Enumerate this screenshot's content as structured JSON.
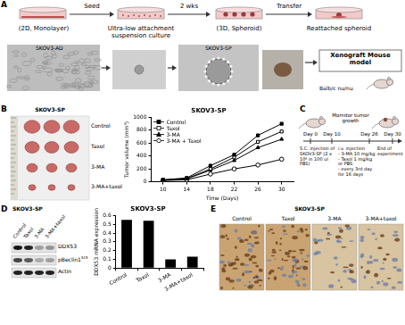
{
  "figure": {
    "A": {
      "letter": "A",
      "steps": [
        "(2D, Monolayer)",
        "Ultra-low attachment suspension culture",
        "(3D, Spheroid)",
        "Reattached spheroid"
      ],
      "arrows": [
        "Seed",
        "2 wks",
        "Transfer"
      ],
      "micrographs": [
        "SKOV3-AD",
        "SKOV3-SP"
      ],
      "model": "Xenograft Mouse model",
      "strain": "Balb/c nu/nu"
    },
    "B": {
      "letter": "B",
      "photo_title": "SKOV3-SP",
      "photo_labels": [
        "Control",
        "Taxol",
        "3-MA",
        "3-MA+taxol"
      ]
    },
    "C": {
      "letter": "C",
      "timeline": [
        "Day 0",
        "Day 10",
        "Day 26",
        "Day 30"
      ],
      "monitor": "Mornitor tumor growth",
      "injection": "S.C. injection of SKOV3-SP (2 x 10⁶ in 100 ul PBS)",
      "treatment": [
        "i.v. injection",
        "- 3-MA 10 mg/kg",
        "- Taxol 1 mg/kg or PBS",
        "- every 3rd day for 16 days"
      ],
      "end": "End of experiment"
    },
    "D": {
      "letter": "D",
      "title": "SKOV3-SP",
      "lanes": [
        "Control",
        "Taxol",
        "3-MA",
        "3-MA+taxol"
      ],
      "bands": [
        {
          "text": "DDX53"
        },
        {
          "text": "pBeclin1",
          "sup": "S15"
        },
        {
          "text": "Actin"
        }
      ]
    },
    "E": {
      "letter": "E",
      "title": "SKOV3-SP",
      "images": [
        "Control",
        "Taxol",
        "3-MA",
        "3-MA+taxol"
      ]
    }
  },
  "chart_data": [
    {
      "type": "line",
      "title": "SKOV3-SP",
      "xlabel": "Time (Days)",
      "ylabel": "Tumor volume (mm³)",
      "x": [
        10,
        14,
        18,
        22,
        26,
        30
      ],
      "series": [
        {
          "name": "Control",
          "color": "#000000",
          "marker": "square",
          "values": [
            30,
            60,
            250,
            420,
            720,
            900
          ]
        },
        {
          "name": "Taxol",
          "color": "#000000",
          "marker": "square-open",
          "values": [
            30,
            50,
            200,
            380,
            620,
            780
          ]
        },
        {
          "name": "3-MA",
          "color": "#000000",
          "marker": "triangle",
          "values": [
            25,
            45,
            180,
            330,
            530,
            660
          ]
        },
        {
          "name": "3-MA + Taxol",
          "color": "#000000",
          "marker": "circle-open",
          "values": [
            20,
            30,
            120,
            200,
            260,
            350
          ]
        }
      ],
      "xlim": [
        8,
        32
      ],
      "xticks": [
        10,
        14,
        18,
        22,
        26,
        30
      ],
      "ylim": [
        0,
        1000
      ],
      "yticks": [
        0,
        200,
        400,
        600,
        800,
        1000
      ],
      "grid": false,
      "legend": "upper left"
    },
    {
      "type": "bar",
      "title": "SKOV3-SP",
      "ylabel": "DDX53 mRNA expression",
      "categories": [
        "Control",
        "Taxol",
        "3-MA",
        "3-MA+taxol"
      ],
      "values": [
        0.55,
        0.54,
        0.1,
        0.13
      ],
      "color": "#000000",
      "ylim": [
        0,
        0.6
      ],
      "yticks": [
        0,
        0.1,
        0.2,
        0.3,
        0.4,
        0.5,
        0.6
      ],
      "grid": false
    }
  ]
}
